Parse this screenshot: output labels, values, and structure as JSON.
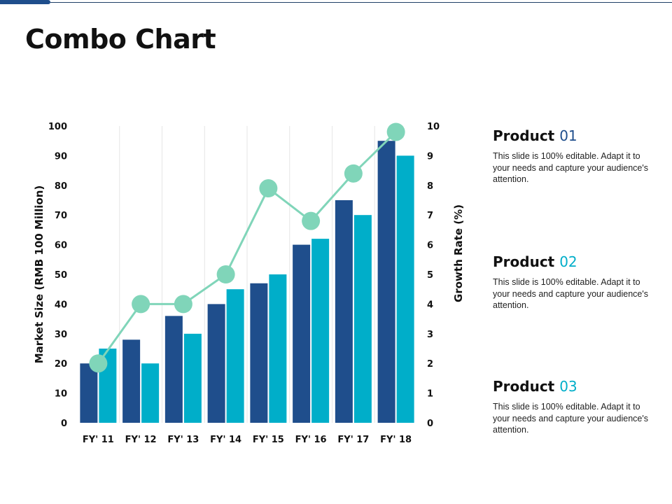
{
  "page": {
    "title": "Combo Chart"
  },
  "chart_data": {
    "type": "bar",
    "categories": [
      "FY' 11",
      "FY' 12",
      "FY' 13",
      "FY' 14",
      "FY' 15",
      "FY' 16",
      "FY' 17",
      "FY' 18"
    ],
    "series": [
      {
        "values": [
          20,
          28,
          36,
          40,
          47,
          60,
          75,
          95
        ],
        "color": "#1f4e8c",
        "axis": "left",
        "kind": "bar"
      },
      {
        "values": [
          25,
          20,
          30,
          45,
          50,
          62,
          70,
          90
        ],
        "color": "#00aec9",
        "axis": "left",
        "kind": "bar"
      },
      {
        "values": [
          2.0,
          4.0,
          4.0,
          5.0,
          7.9,
          6.8,
          8.4,
          9.8
        ],
        "color": "#80d5b9",
        "axis": "right",
        "kind": "line"
      }
    ],
    "ylabel": "Market Size (RMB 100 Million)",
    "y2label": "Growth Rate (%)",
    "ylim": [
      0,
      100
    ],
    "y2lim": [
      0,
      10
    ],
    "yticks": [
      0,
      10,
      20,
      30,
      40,
      50,
      60,
      70,
      80,
      90,
      100
    ],
    "y2ticks": [
      0,
      1,
      2,
      3,
      4,
      5,
      6,
      7,
      8,
      9,
      10
    ],
    "grid": "vertical",
    "legend": "none"
  },
  "products": [
    {
      "name": "Product",
      "number": "01",
      "number_color": "#1f4e8c",
      "description": "This slide is 100% editable. Adapt it to your needs and capture your audience's attention."
    },
    {
      "name": "Product",
      "number": "02",
      "number_color": "#00aec9",
      "description": "This slide is 100% editable. Adapt it to your needs and capture your audience's attention."
    },
    {
      "name": "Product",
      "number": "03",
      "number_color": "#00aec9",
      "description": "This slide is 100% editable. Adapt it to your needs and capture your audience's attention."
    }
  ]
}
